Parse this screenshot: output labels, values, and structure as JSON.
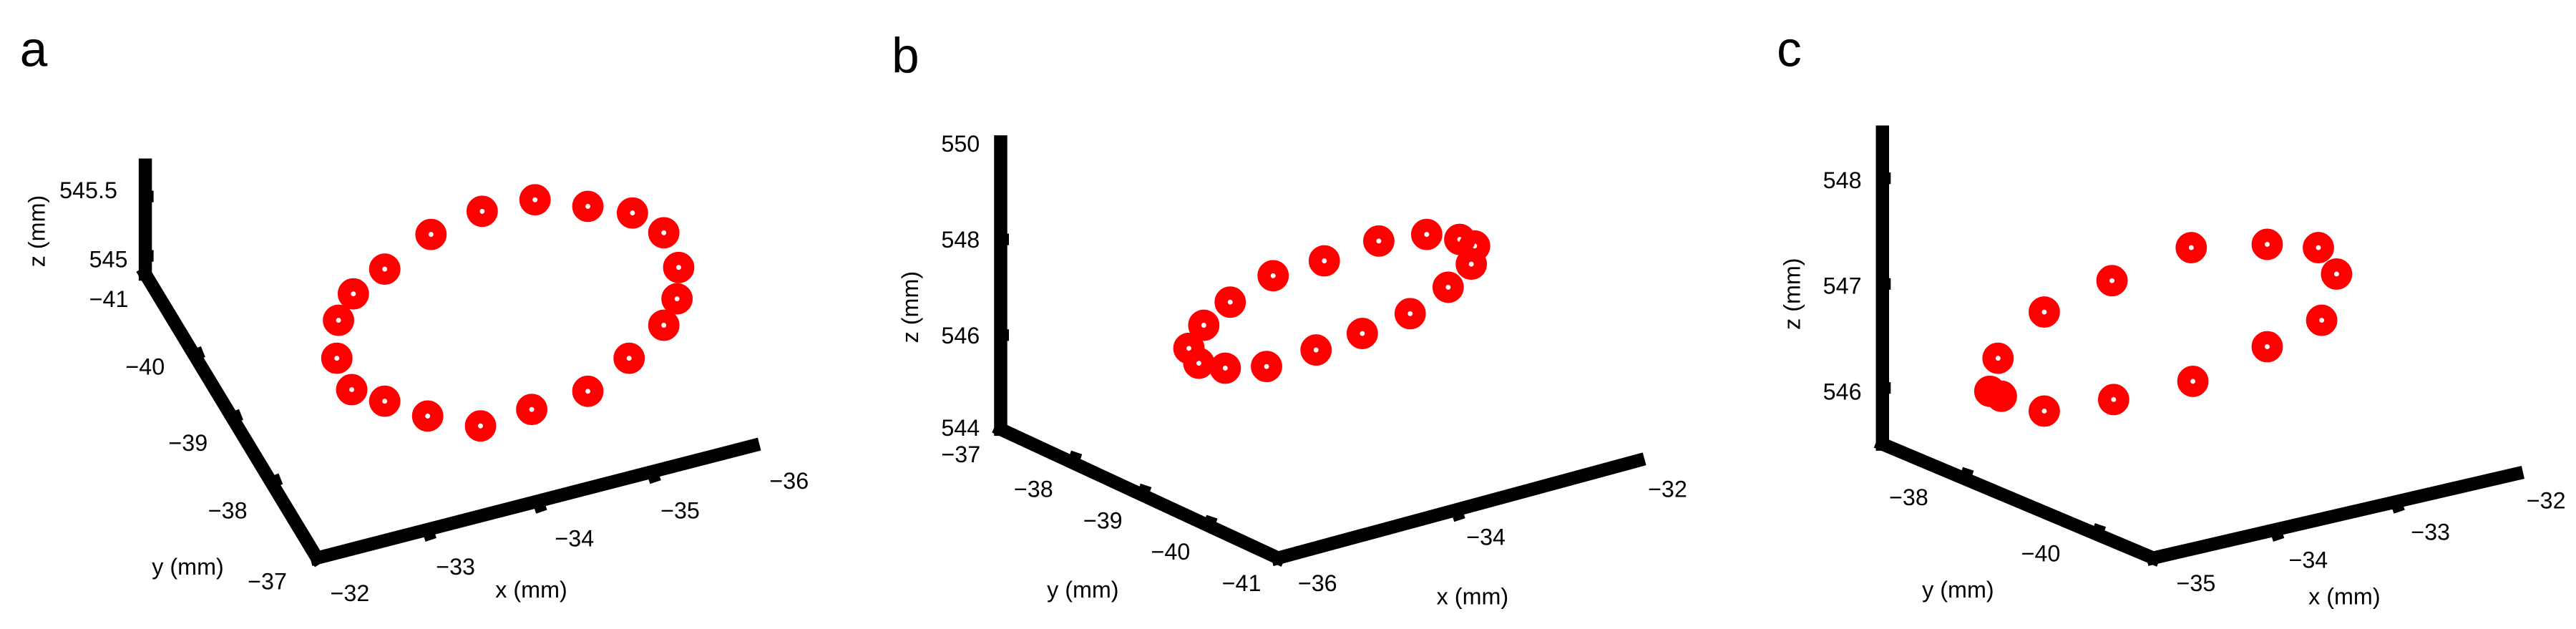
{
  "marker_color": "#ff0000",
  "chart_data": [
    {
      "type": "scatter",
      "panel_label": "a",
      "xlabel": "x (mm)",
      "ylabel": "y (mm)",
      "zlabel": "z (mm)",
      "x_ticks": [
        "−32",
        "−33",
        "−34",
        "−35",
        "−36"
      ],
      "y_ticks": [
        "−37",
        "−38",
        "−39",
        "−40",
        "−41"
      ],
      "z_ticks": [
        "545",
        "545.5"
      ],
      "points_z_label": [
        [
          292,
          121
        ],
        [
          324,
          121
        ],
        [
          356,
          125
        ],
        [
          383,
          129
        ],
        [
          402,
          141
        ],
        [
          411,
          162
        ],
        [
          410,
          181
        ],
        [
          402,
          197
        ],
        [
          381,
          217
        ],
        [
          356,
          237
        ],
        [
          322,
          248
        ],
        [
          291,
          258
        ],
        [
          259,
          252
        ],
        [
          233,
          243
        ],
        [
          213,
          236
        ],
        [
          204,
          217
        ],
        [
          205,
          194
        ],
        [
          214,
          178
        ],
        [
          233,
          163
        ],
        [
          261,
          142
        ]
      ]
    },
    {
      "type": "scatter",
      "panel_label": "b",
      "xlabel": "x (mm)",
      "ylabel": "y (mm)",
      "zlabel": "z (mm)",
      "x_ticks": [
        "−36",
        "−34",
        "−32"
      ],
      "y_ticks": [
        "−37",
        "−38",
        "−39",
        "−40",
        "−41"
      ],
      "z_ticks": [
        "544",
        "546",
        "548",
        "550"
      ],
      "points_z_label": []
    },
    {
      "type": "scatter",
      "panel_label": "c",
      "xlabel": "x (mm)",
      "ylabel": "y (mm)",
      "zlabel": "z (mm)",
      "x_ticks": [
        "−35",
        "−34",
        "−33",
        "−32"
      ],
      "y_ticks": [
        "−38",
        "−40"
      ],
      "z_ticks": [
        "546",
        "547",
        "548"
      ],
      "points_z_label": []
    }
  ]
}
